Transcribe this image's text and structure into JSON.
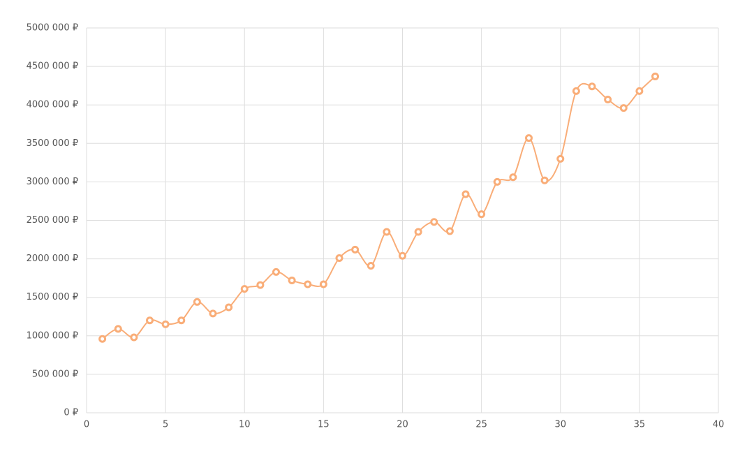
{
  "chart_data": {
    "type": "line",
    "x": [
      1,
      2,
      3,
      4,
      5,
      6,
      7,
      8,
      9,
      10,
      11,
      12,
      13,
      14,
      15,
      16,
      17,
      18,
      19,
      20,
      21,
      22,
      23,
      24,
      25,
      26,
      27,
      28,
      29,
      30,
      31,
      32,
      33,
      34,
      35,
      36
    ],
    "values": [
      960000,
      1090000,
      980000,
      1200000,
      1150000,
      1200000,
      1440000,
      1290000,
      1370000,
      1610000,
      1660000,
      1830000,
      1720000,
      1670000,
      1670000,
      2010000,
      2120000,
      1910000,
      2350000,
      2040000,
      2350000,
      2480000,
      2360000,
      2840000,
      2580000,
      3000000,
      3060000,
      3570000,
      3020000,
      3300000,
      4180000,
      4240000,
      4070000,
      3960000,
      4180000,
      4370000
    ],
    "color": "#f9ad78",
    "smooth": true,
    "grid": true,
    "xlim": [
      0,
      40
    ],
    "xticks": [
      0,
      5,
      10,
      15,
      20,
      25,
      30,
      35,
      40
    ],
    "ylim": [
      0,
      5000000
    ],
    "yticks": [
      {
        "value": 0,
        "label": "0 ₽"
      },
      {
        "value": 500000,
        "label": "500 000 ₽"
      },
      {
        "value": 1000000,
        "label": "1000 000 ₽"
      },
      {
        "value": 1500000,
        "label": "1500 000 ₽"
      },
      {
        "value": 2000000,
        "label": "2000 000 ₽"
      },
      {
        "value": 2500000,
        "label": "2500 000 ₽"
      },
      {
        "value": 3000000,
        "label": "3000 000 ₽"
      },
      {
        "value": 3500000,
        "label": "3500 000 ₽"
      },
      {
        "value": 4000000,
        "label": "4000 000 ₽"
      },
      {
        "value": 4500000,
        "label": "4500 000 ₽"
      },
      {
        "value": 5000000,
        "label": "5000 000 ₽"
      }
    ]
  }
}
